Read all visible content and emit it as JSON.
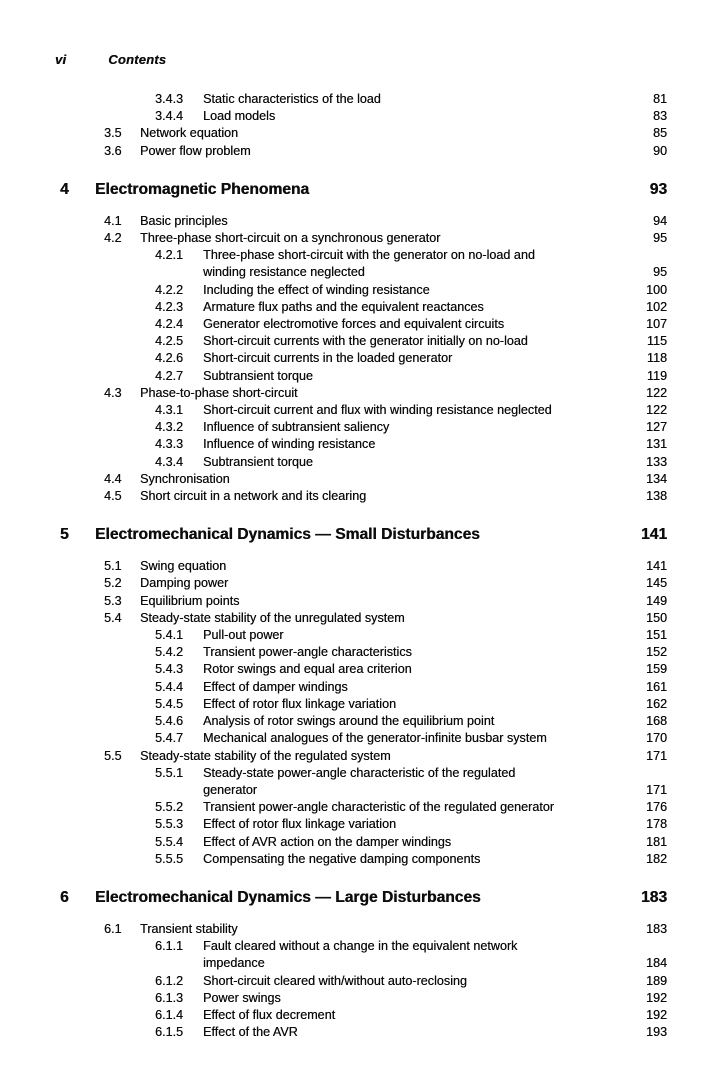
{
  "page": {
    "folio": "vi",
    "header": "Contents"
  },
  "toc": {
    "entries": [
      {
        "type": "subsection",
        "num": "3.4.3",
        "title": "Static characteristics of the load",
        "page": "81"
      },
      {
        "type": "subsection",
        "num": "3.4.4",
        "title": "Load models",
        "page": "83"
      },
      {
        "type": "section",
        "num": "3.5",
        "title": "Network equation",
        "page": "85"
      },
      {
        "type": "section",
        "num": "3.6",
        "title": "Power flow problem",
        "page": "90"
      },
      {
        "type": "chapter",
        "num": "4",
        "title": "Electromagnetic Phenomena",
        "page": "93"
      },
      {
        "type": "section",
        "num": "4.1",
        "title": "Basic principles",
        "page": "94"
      },
      {
        "type": "section",
        "num": "4.2",
        "title": "Three-phase short-circuit on a synchronous generator",
        "page": "95"
      },
      {
        "type": "subsection",
        "num": "4.2.1",
        "title": "Three-phase short-circuit with the generator on no-load and",
        "title2": "winding resistance neglected",
        "page": "95"
      },
      {
        "type": "subsection",
        "num": "4.2.2",
        "title": "Including the effect of winding resistance",
        "page": "100"
      },
      {
        "type": "subsection",
        "num": "4.2.3",
        "title": "Armature flux paths and the equivalent reactances",
        "page": "102"
      },
      {
        "type": "subsection",
        "num": "4.2.4",
        "title": "Generator electromotive forces and equivalent circuits",
        "page": "107"
      },
      {
        "type": "subsection",
        "num": "4.2.5",
        "title": "Short-circuit currents with the generator initially on no-load",
        "page": "115"
      },
      {
        "type": "subsection",
        "num": "4.2.6",
        "title": "Short-circuit currents in the loaded generator",
        "page": "118"
      },
      {
        "type": "subsection",
        "num": "4.2.7",
        "title": "Subtransient torque",
        "page": "119"
      },
      {
        "type": "section",
        "num": "4.3",
        "title": "Phase-to-phase short-circuit",
        "page": "122"
      },
      {
        "type": "subsection",
        "num": "4.3.1",
        "title": "Short-circuit current and flux with winding resistance neglected",
        "page": "122"
      },
      {
        "type": "subsection",
        "num": "4.3.2",
        "title": "Influence of subtransient saliency",
        "page": "127"
      },
      {
        "type": "subsection",
        "num": "4.3.3",
        "title": "Influence of winding resistance",
        "page": "131"
      },
      {
        "type": "subsection",
        "num": "4.3.4",
        "title": "Subtransient torque",
        "page": "133"
      },
      {
        "type": "section",
        "num": "4.4",
        "title": "Synchronisation",
        "page": "134"
      },
      {
        "type": "section",
        "num": "4.5",
        "title": "Short circuit in a network and its clearing",
        "page": "138"
      },
      {
        "type": "chapter",
        "num": "5",
        "title": "Electromechanical Dynamics — Small Disturbances",
        "page": "141"
      },
      {
        "type": "section",
        "num": "5.1",
        "title": "Swing equation",
        "page": "141"
      },
      {
        "type": "section",
        "num": "5.2",
        "title": "Damping power",
        "page": "145"
      },
      {
        "type": "section",
        "num": "5.3",
        "title": "Equilibrium points",
        "page": "149"
      },
      {
        "type": "section",
        "num": "5.4",
        "title": "Steady-state stability of the unregulated system",
        "page": "150"
      },
      {
        "type": "subsection",
        "num": "5.4.1",
        "title": "Pull-out power",
        "page": "151"
      },
      {
        "type": "subsection",
        "num": "5.4.2",
        "title": "Transient power-angle characteristics",
        "page": "152"
      },
      {
        "type": "subsection",
        "num": "5.4.3",
        "title": "Rotor swings and equal area criterion",
        "page": "159"
      },
      {
        "type": "subsection",
        "num": "5.4.4",
        "title": "Effect of damper windings",
        "page": "161"
      },
      {
        "type": "subsection",
        "num": "5.4.5",
        "title": "Effect of rotor flux linkage variation",
        "page": "162"
      },
      {
        "type": "subsection",
        "num": "5.4.6",
        "title": "Analysis of rotor swings around the equilibrium point",
        "page": "168"
      },
      {
        "type": "subsection",
        "num": "5.4.7",
        "title": "Mechanical analogues of the generator-infinite busbar system",
        "page": "170"
      },
      {
        "type": "section",
        "num": "5.5",
        "title": "Steady-state stability of the regulated system",
        "page": "171"
      },
      {
        "type": "subsection",
        "num": "5.5.1",
        "title": "Steady-state power-angle characteristic of the regulated",
        "title2": "generator",
        "page": "171"
      },
      {
        "type": "subsection",
        "num": "5.5.2",
        "title": "Transient power-angle characteristic of the regulated generator",
        "page": "176"
      },
      {
        "type": "subsection",
        "num": "5.5.3",
        "title": "Effect of rotor flux linkage variation",
        "page": "178"
      },
      {
        "type": "subsection",
        "num": "5.5.4",
        "title": "Effect of AVR action on the damper windings",
        "page": "181"
      },
      {
        "type": "subsection",
        "num": "5.5.5",
        "title": "Compensating the negative damping components",
        "page": "182"
      },
      {
        "type": "chapter",
        "num": "6",
        "title": "Electromechanical Dynamics — Large Disturbances",
        "page": "183"
      },
      {
        "type": "section",
        "num": "6.1",
        "title": "Transient stability",
        "page": "183"
      },
      {
        "type": "subsection",
        "num": "6.1.1",
        "title": "Fault cleared without a change in the equivalent network",
        "title2": "impedance",
        "page": "184"
      },
      {
        "type": "subsection",
        "num": "6.1.2",
        "title": "Short-circuit cleared with/without auto-reclosing",
        "page": "189"
      },
      {
        "type": "subsection",
        "num": "6.1.3",
        "title": "Power swings",
        "page": "192"
      },
      {
        "type": "subsection",
        "num": "6.1.4",
        "title": "Effect of flux decrement",
        "page": "192"
      },
      {
        "type": "subsection",
        "num": "6.1.5",
        "title": "Effect of the AVR",
        "page": "193"
      }
    ]
  }
}
